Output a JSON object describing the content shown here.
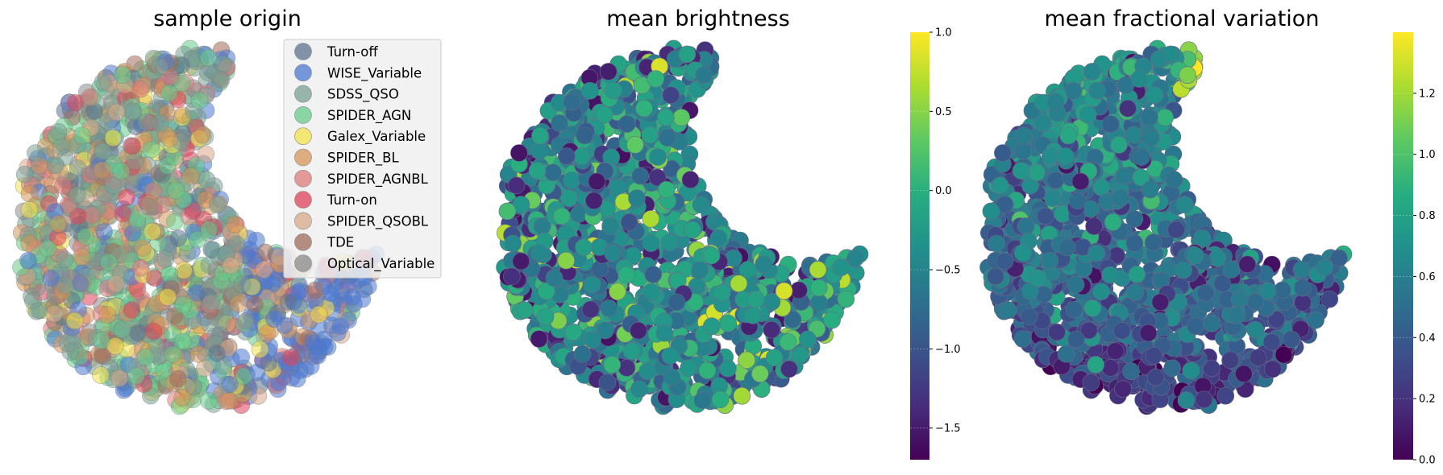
{
  "chart_data": [
    {
      "type": "scatter",
      "title": "sample origin",
      "legend": {
        "placement": "upper-right",
        "entries": [
          {
            "label": "Turn-off",
            "color": "#5b7290"
          },
          {
            "label": "WISE_Variable",
            "color": "#4a78d4"
          },
          {
            "label": "SDSS_QSO",
            "color": "#78a096"
          },
          {
            "label": "SPIDER_AGN",
            "color": "#66cc8a"
          },
          {
            "label": "Galex_Variable",
            "color": "#f2e24a"
          },
          {
            "label": "SPIDER_BL",
            "color": "#d6955a"
          },
          {
            "label": "SPIDER_AGNBL",
            "color": "#e07a7a"
          },
          {
            "label": "Turn-on",
            "color": "#e0405a"
          },
          {
            "label": "SPIDER_QSOBL",
            "color": "#d8a888"
          },
          {
            "label": "TDE",
            "color": "#a06a5a"
          },
          {
            "label": "Optical_Variable",
            "color": "#8c8c8c"
          }
        ]
      },
      "axes_visible": false
    },
    {
      "type": "scatter",
      "title": "mean brightness",
      "colormap": "viridis",
      "colorbar": {
        "range": [
          -1.7,
          1.0
        ],
        "ticks": [
          1.0,
          0.5,
          0.0,
          -0.5,
          -1.0,
          -1.5
        ],
        "tick_labels": [
          "1.0",
          "0.5",
          "0.0",
          "−0.5",
          "−1.0",
          "−1.5"
        ]
      },
      "axes_visible": false
    },
    {
      "type": "scatter",
      "title": "mean fractional variation",
      "colormap": "viridis",
      "colorbar": {
        "range": [
          0.0,
          1.4
        ],
        "ticks": [
          1.2,
          1.0,
          0.8,
          0.6,
          0.4,
          0.2,
          0.0
        ],
        "tick_labels": [
          "1.2",
          "1.0",
          "0.8",
          "0.6",
          "0.4",
          "0.2",
          "0.0"
        ]
      },
      "axes_visible": false
    }
  ]
}
